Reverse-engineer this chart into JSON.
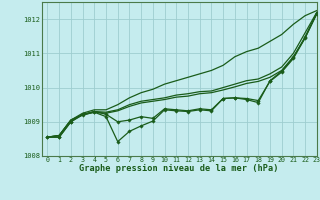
{
  "title": "Graphe pression niveau de la mer (hPa)",
  "bg_color": "#c5ecee",
  "grid_color": "#9ecdd0",
  "line_color": "#1a5c1a",
  "spine_color": "#4a7a4a",
  "xlim": [
    -0.5,
    23
  ],
  "ylim": [
    1008,
    1012.5
  ],
  "yticks": [
    1008,
    1009,
    1010,
    1011,
    1012
  ],
  "xticks": [
    0,
    1,
    2,
    3,
    4,
    5,
    6,
    7,
    8,
    9,
    10,
    11,
    12,
    13,
    14,
    15,
    16,
    17,
    18,
    19,
    20,
    21,
    22,
    23
  ],
  "hours": [
    0,
    1,
    2,
    3,
    4,
    5,
    6,
    7,
    8,
    9,
    10,
    11,
    12,
    13,
    14,
    15,
    16,
    17,
    18,
    19,
    20,
    21,
    22,
    23
  ],
  "line_top_smooth": [
    1008.55,
    1008.6,
    1009.05,
    1009.25,
    1009.35,
    1009.35,
    1009.5,
    1009.7,
    1009.85,
    1009.95,
    1010.1,
    1010.2,
    1010.3,
    1010.4,
    1010.5,
    1010.65,
    1010.9,
    1011.05,
    1011.15,
    1011.35,
    1011.55,
    1011.85,
    1012.1,
    1012.25
  ],
  "line_mid_smooth": [
    1008.55,
    1008.6,
    1009.05,
    1009.2,
    1009.3,
    1009.28,
    1009.35,
    1009.5,
    1009.6,
    1009.65,
    1009.7,
    1009.78,
    1009.82,
    1009.88,
    1009.9,
    1010.0,
    1010.1,
    1010.2,
    1010.25,
    1010.4,
    1010.6,
    1011.0,
    1011.6,
    1012.2
  ],
  "line_lower_smooth": [
    1008.55,
    1008.6,
    1009.05,
    1009.2,
    1009.28,
    1009.25,
    1009.32,
    1009.45,
    1009.55,
    1009.6,
    1009.65,
    1009.72,
    1009.75,
    1009.82,
    1009.85,
    1009.93,
    1010.02,
    1010.12,
    1010.18,
    1010.3,
    1010.5,
    1010.9,
    1011.45,
    1012.18
  ],
  "line_marker1": [
    1008.55,
    1008.55,
    1009.0,
    1009.22,
    1009.3,
    1009.22,
    1009.0,
    1009.05,
    1009.15,
    1009.1,
    1009.38,
    1009.35,
    1009.32,
    1009.38,
    1009.35,
    1009.68,
    1009.7,
    1009.68,
    1009.62,
    1010.18,
    1010.45,
    1010.85,
    1011.45,
    1012.15
  ],
  "line_marker2": [
    1008.55,
    1008.55,
    1009.0,
    1009.2,
    1009.28,
    1009.15,
    1008.42,
    1008.72,
    1008.88,
    1009.02,
    1009.35,
    1009.32,
    1009.3,
    1009.35,
    1009.32,
    1009.68,
    1009.7,
    1009.65,
    1009.56,
    1010.2,
    1010.48,
    1010.88,
    1011.48,
    1012.18
  ]
}
